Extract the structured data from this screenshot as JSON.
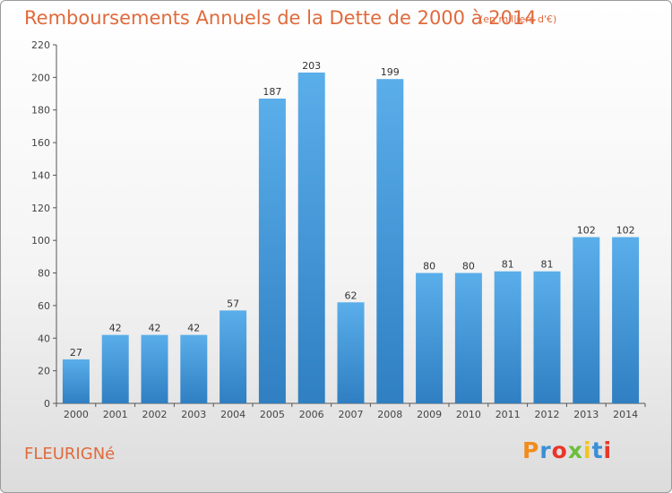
{
  "header": {
    "title": "Remboursements Annuels de la Dette de 2000 à 2014",
    "unit": "(en milliers d'€)"
  },
  "footer": {
    "commune": "FLEURIGNé",
    "logo": "Proxiti",
    "logo_colors": [
      "#f28c1c",
      "#3a8fd6",
      "#e8362a",
      "#6bbf3a",
      "#f5c41a",
      "#3a8fd6",
      "#e8362a"
    ]
  },
  "chart_data": {
    "type": "bar",
    "categories": [
      "2000",
      "2001",
      "2002",
      "2003",
      "2004",
      "2005",
      "2006",
      "2007",
      "2008",
      "2009",
      "2010",
      "2011",
      "2012",
      "2013",
      "2014"
    ],
    "values": [
      27,
      42,
      42,
      42,
      57,
      187,
      203,
      62,
      199,
      80,
      80,
      81,
      81,
      102,
      102
    ],
    "data_labels": [
      "27",
      "42",
      "42",
      "42",
      "57",
      "187",
      "203",
      "62",
      "199",
      "80",
      "80",
      "81",
      "81",
      "102",
      "102"
    ],
    "yticks": [
      0,
      20,
      40,
      60,
      80,
      100,
      120,
      140,
      160,
      180,
      200,
      220
    ],
    "ylim": [
      0,
      220
    ],
    "grid": false,
    "bar_color": "#4a9fe0"
  }
}
